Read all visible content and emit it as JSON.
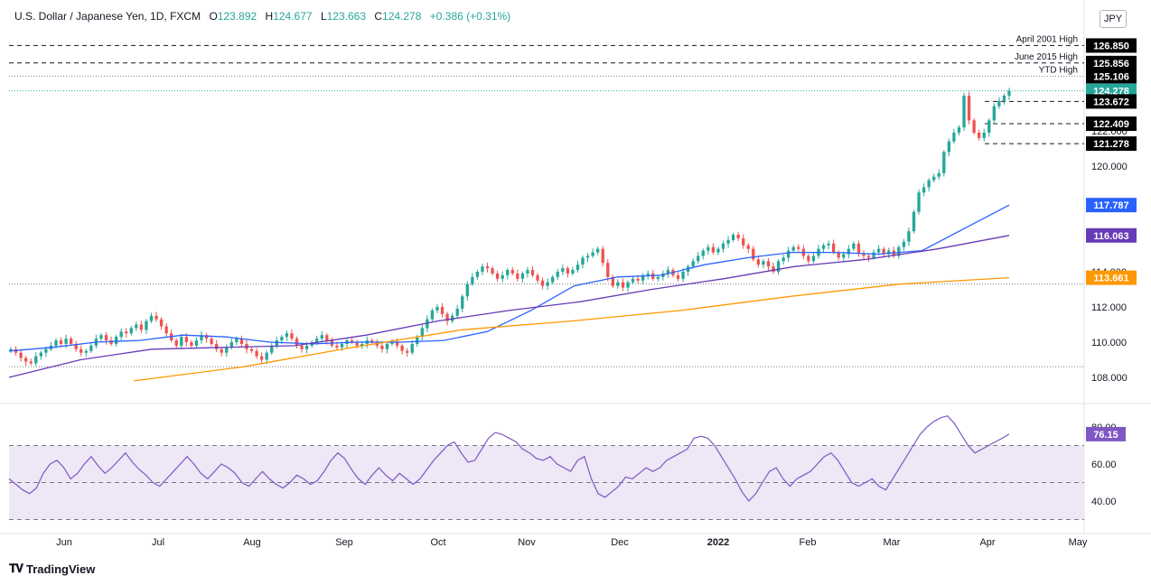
{
  "header": {
    "symbol": "U.S. Dollar / Japanese Yen, 1D, FXCM",
    "open_label": "O",
    "open": "123.892",
    "high_label": "H",
    "high": "124.677",
    "low_label": "L",
    "low": "123.663",
    "close_label": "C",
    "close": "124.278",
    "change": "+0.386 (+0.31%)"
  },
  "currency_button": "JPY",
  "brand": "TradingView",
  "colors": {
    "up": "#26a69a",
    "down": "#ef5350",
    "ma50": "#2962ff",
    "ma100": "#673ab7",
    "ma200": "#ff9800",
    "rsi": "#7e57c2",
    "rsi_band": "#ede7f6"
  },
  "chart_data": [
    {
      "type": "candlestick",
      "title": "U.S. Dollar / Japanese Yen, 1D, FXCM",
      "ylim": [
        107.4,
        127.6
      ],
      "x_ticks": [
        "Jun",
        "Jul",
        "Aug",
        "Sep",
        "Oct",
        "Nov",
        "Dec",
        "2022",
        "Feb",
        "Mar",
        "Apr",
        "May"
      ],
      "y_ticks": [
        "108.000",
        "110.000",
        "112.000",
        "114.000",
        "116.000",
        "118.000",
        "120.000",
        "122.000",
        "124.000",
        "126.000"
      ],
      "x_range": [
        "2021-05-20",
        "2022-05-05"
      ],
      "close": [
        109.6,
        109.4,
        109.1,
        108.9,
        108.8,
        109.2,
        109.4,
        109.6,
        109.8,
        110.1,
        109.9,
        110.2,
        109.9,
        109.6,
        109.4,
        109.5,
        109.8,
        110.2,
        110.4,
        110.1,
        109.9,
        110.3,
        110.6,
        110.5,
        110.8,
        111.0,
        110.7,
        111.2,
        111.5,
        111.3,
        110.9,
        110.5,
        110.1,
        109.8,
        110.3,
        110.0,
        109.8,
        110.1,
        110.4,
        110.2,
        109.9,
        109.6,
        109.4,
        109.7,
        110.0,
        110.2,
        109.9,
        109.6,
        109.5,
        109.2,
        109.0,
        109.4,
        109.8,
        110.1,
        110.3,
        110.5,
        110.2,
        109.8,
        109.6,
        109.8,
        110.0,
        110.2,
        110.4,
        110.1,
        109.8,
        109.7,
        109.9,
        110.1,
        110.0,
        109.8,
        109.9,
        110.1,
        110.0,
        109.8,
        109.6,
        109.9,
        110.0,
        109.8,
        109.5,
        109.4,
        109.9,
        110.3,
        110.8,
        111.3,
        111.8,
        112.0,
        111.6,
        111.2,
        111.5,
        111.9,
        112.6,
        113.3,
        113.7,
        114.0,
        114.3,
        114.2,
        113.9,
        113.6,
        113.8,
        114.1,
        113.9,
        113.6,
        113.9,
        114.1,
        113.8,
        113.5,
        113.2,
        113.4,
        113.7,
        114.0,
        114.2,
        113.9,
        114.1,
        114.4,
        114.8,
        114.9,
        115.1,
        115.3,
        114.5,
        113.7,
        113.2,
        113.4,
        113.1,
        113.4,
        113.6,
        113.5,
        113.8,
        113.9,
        113.6,
        113.7,
        113.9,
        114.1,
        113.8,
        113.6,
        114.0,
        114.3,
        114.6,
        114.9,
        115.2,
        115.4,
        115.1,
        115.3,
        115.6,
        115.8,
        116.1,
        115.9,
        115.5,
        115.3,
        114.7,
        114.4,
        114.6,
        114.3,
        114.0,
        114.6,
        114.8,
        115.2,
        115.4,
        115.3,
        114.9,
        114.6,
        114.9,
        115.3,
        115.5,
        115.6,
        115.1,
        114.8,
        115.0,
        115.3,
        115.6,
        115.0,
        114.9,
        114.8,
        115.1,
        115.3,
        115.0,
        115.2,
        114.9,
        115.4,
        115.7,
        116.3,
        117.4,
        118.5,
        118.8,
        119.2,
        119.4,
        119.6,
        120.8,
        121.4,
        121.9,
        122.2,
        124.0,
        122.6,
        121.9,
        121.6,
        121.9,
        122.6,
        123.4,
        123.7,
        124.0,
        124.278
      ],
      "ma50": [
        109.5,
        109.7,
        110.0,
        110.1,
        110.4,
        110.3,
        110.0,
        109.9,
        110.0,
        110.0,
        110.1,
        110.6,
        111.8,
        113.2,
        113.7,
        113.8,
        114.4,
        114.8,
        115.1,
        115.1,
        115.0,
        115.2,
        116.5,
        117.787
      ],
      "ma100": [
        108.0,
        109.0,
        109.6,
        109.7,
        109.8,
        110.4,
        111.2,
        111.8,
        112.3,
        113.0,
        113.6,
        114.3,
        114.7,
        115.3,
        116.063
      ],
      "ma200": [
        107.8,
        108.6,
        109.7,
        110.7,
        111.2,
        111.8,
        112.6,
        113.3,
        113.661
      ],
      "rsi": [
        52,
        49,
        46,
        44,
        47,
        55,
        60,
        62,
        58,
        52,
        55,
        60,
        64,
        59,
        55,
        58,
        62,
        66,
        61,
        57,
        54,
        50,
        48,
        52,
        56,
        60,
        64,
        60,
        55,
        52,
        56,
        60,
        58,
        55,
        50,
        48,
        52,
        56,
        52,
        49,
        47,
        50,
        54,
        52,
        49,
        51,
        56,
        62,
        66,
        63,
        57,
        52,
        49,
        54,
        58,
        54,
        51,
        55,
        52,
        49,
        52,
        57,
        62,
        66,
        70,
        72,
        66,
        61,
        62,
        68,
        74,
        77,
        76,
        74,
        72,
        68,
        66,
        63,
        62,
        64,
        60,
        58,
        56,
        62,
        64,
        52,
        44,
        42,
        45,
        48,
        53,
        52,
        55,
        58,
        56,
        58,
        62,
        64,
        66,
        68,
        74,
        75,
        74,
        70,
        64,
        58,
        52,
        45,
        40,
        44,
        50,
        56,
        58,
        52,
        48,
        52,
        54,
        56,
        60,
        64,
        66,
        62,
        56,
        50,
        48,
        50,
        52,
        48,
        46,
        52,
        58,
        64,
        70,
        76,
        80,
        83,
        85,
        86,
        82,
        76,
        70,
        66,
        68,
        70,
        72,
        74,
        76.15
      ],
      "levels": [
        {
          "value": 126.85,
          "label": "126.850",
          "note": "April 2001 High",
          "style": "dashed"
        },
        {
          "value": 125.856,
          "label": "125.856",
          "note": "June 2015 High",
          "style": "dashed"
        },
        {
          "value": 125.106,
          "label": "125.106",
          "note": "YTD High",
          "style": "dotted"
        },
        {
          "value": 124.278,
          "label": "124.278",
          "note": "",
          "style": "dotted-teal"
        },
        {
          "value": 123.672,
          "label": "123.672",
          "note": "",
          "style": "dashed"
        },
        {
          "value": 122.409,
          "label": "122.409",
          "note": "",
          "style": "dashed"
        },
        {
          "value": 121.278,
          "label": "121.278",
          "note": "",
          "style": "dashed"
        },
        {
          "value": 113.3,
          "label": "",
          "note": "",
          "style": "dotted"
        },
        {
          "value": 108.6,
          "label": "",
          "note": "",
          "style": "dotted"
        }
      ],
      "ma_labels": [
        {
          "name": "ma50",
          "value": "117.787"
        },
        {
          "name": "ma100",
          "value": "116.063"
        },
        {
          "name": "ma200",
          "value": "113.661"
        }
      ]
    },
    {
      "type": "line",
      "ylim": [
        25,
        92
      ],
      "y_ticks": [
        "40.00",
        "60.00",
        "80.00"
      ],
      "band": [
        30,
        70
      ],
      "midline": 50,
      "last_value_label": "76.15"
    }
  ]
}
